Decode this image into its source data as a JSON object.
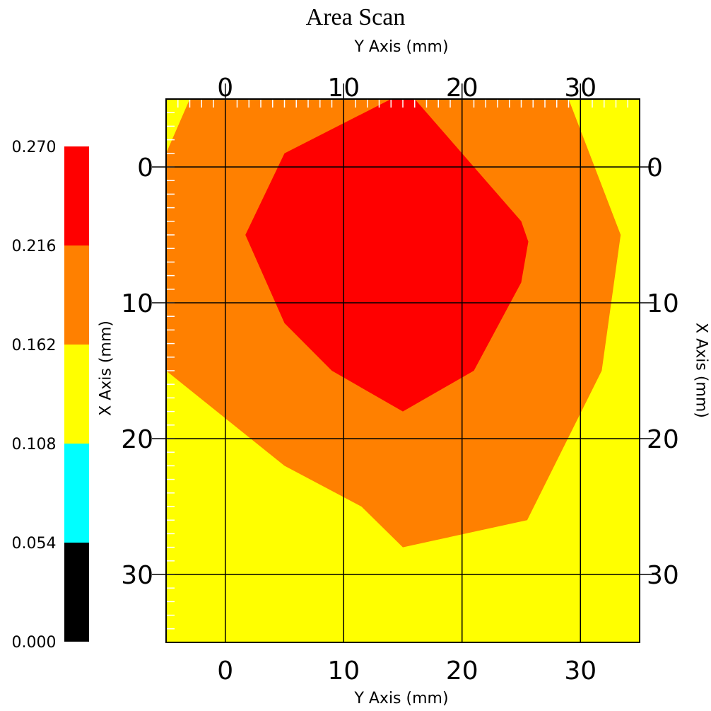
{
  "chart_data": {
    "type": "contour",
    "title": "Area Scan",
    "xlabel": "Y Axis (mm)",
    "ylabel": "X Axis (mm)",
    "x_range": [
      -5,
      35
    ],
    "y_range": [
      -5,
      35
    ],
    "y_inverted": true,
    "x_ticks": [
      0,
      10,
      20,
      30
    ],
    "y_ticks": [
      0,
      10,
      20,
      30
    ],
    "grid": true,
    "color_scale": {
      "labels": [
        "0.270",
        "0.216",
        "0.162",
        "0.108",
        "0.054",
        "0.000"
      ],
      "bins": [
        {
          "min": 0.0,
          "max": 0.054,
          "color": "#000000"
        },
        {
          "min": 0.054,
          "max": 0.108,
          "color": "#00ffff"
        },
        {
          "min": 0.108,
          "max": 0.162,
          "color": "#ffff00"
        },
        {
          "min": 0.162,
          "max": 0.216,
          "color": "#ff8000"
        },
        {
          "min": 0.216,
          "max": 0.27,
          "color": "#ff0000"
        }
      ]
    },
    "background_color": "#ffff00",
    "regions": [
      {
        "level_range": [
          0.162,
          0.216
        ],
        "color": "#ff8000",
        "polygon": [
          [
            -3,
            -5
          ],
          [
            29,
            -5
          ],
          [
            33.4,
            5
          ],
          [
            31.8,
            15
          ],
          [
            25.5,
            26
          ],
          [
            15,
            28
          ],
          [
            11.5,
            25
          ],
          [
            5,
            22
          ],
          [
            -5,
            15
          ],
          [
            -5,
            -1
          ]
        ]
      },
      {
        "level_range": [
          0.216,
          0.27
        ],
        "color": "#ff0000",
        "polygon": [
          [
            14,
            -5
          ],
          [
            16,
            -5
          ],
          [
            25,
            4
          ],
          [
            25.6,
            5.5
          ],
          [
            25,
            8.5
          ],
          [
            21,
            15
          ],
          [
            15,
            18
          ],
          [
            9,
            15
          ],
          [
            5,
            11.5
          ],
          [
            1.7,
            5
          ],
          [
            5,
            -1
          ]
        ]
      }
    ]
  }
}
